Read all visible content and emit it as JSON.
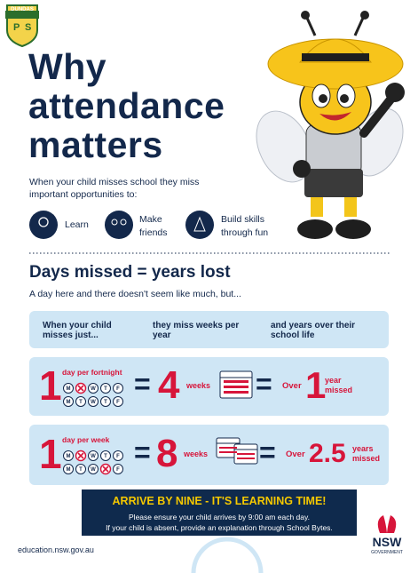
{
  "logo": {
    "name": "DUNDAS",
    "letters": [
      "P",
      "S"
    ]
  },
  "title": [
    "Why",
    "attendance",
    "matters"
  ],
  "intro": "When your child misses school they miss important opportunities to:",
  "benefits": [
    "Learn",
    "Make friends",
    "Build skills through fun"
  ],
  "section": {
    "heading": "Days missed = years lost",
    "subheading": "A day here and there doesn't seem like much, but..."
  },
  "table": {
    "header": [
      "When your child misses just...",
      "they miss weeks per year",
      "and years over their school life"
    ],
    "rows": [
      {
        "count": "1",
        "unit": "day per fortnight",
        "weeks": [
          [
            "M",
            null,
            "W",
            "T",
            "F"
          ],
          [
            "M",
            "T",
            "W",
            "T",
            "F"
          ]
        ],
        "equals": "=",
        "weeks_missed": "4",
        "weeks_unit": "weeks",
        "equals_2": "=",
        "over": "Over",
        "years": "1",
        "years_unit": "year missed"
      },
      {
        "count": "1",
        "unit": "day per week",
        "weeks": [
          [
            "M",
            null,
            "W",
            "T",
            "F"
          ],
          [
            "M",
            "T",
            "W",
            null,
            "F"
          ]
        ],
        "equals": "=",
        "weeks_missed": "8",
        "weeks_unit": "weeks",
        "equals_2": "=",
        "over": "Over",
        "years": "2.5",
        "years_unit": "years missed"
      }
    ]
  },
  "banner": {
    "title": "ARRIVE BY NINE - IT'S LEARNING TIME!",
    "lines": [
      "Please ensure your child arrives by 9:00 am each day.",
      "If your child is absent, provide an explanation through School Bytes."
    ]
  },
  "footer": {
    "url": "education.nsw.gov.au",
    "logo": "NSW",
    "logo_sub": "GOVERNMENT"
  }
}
